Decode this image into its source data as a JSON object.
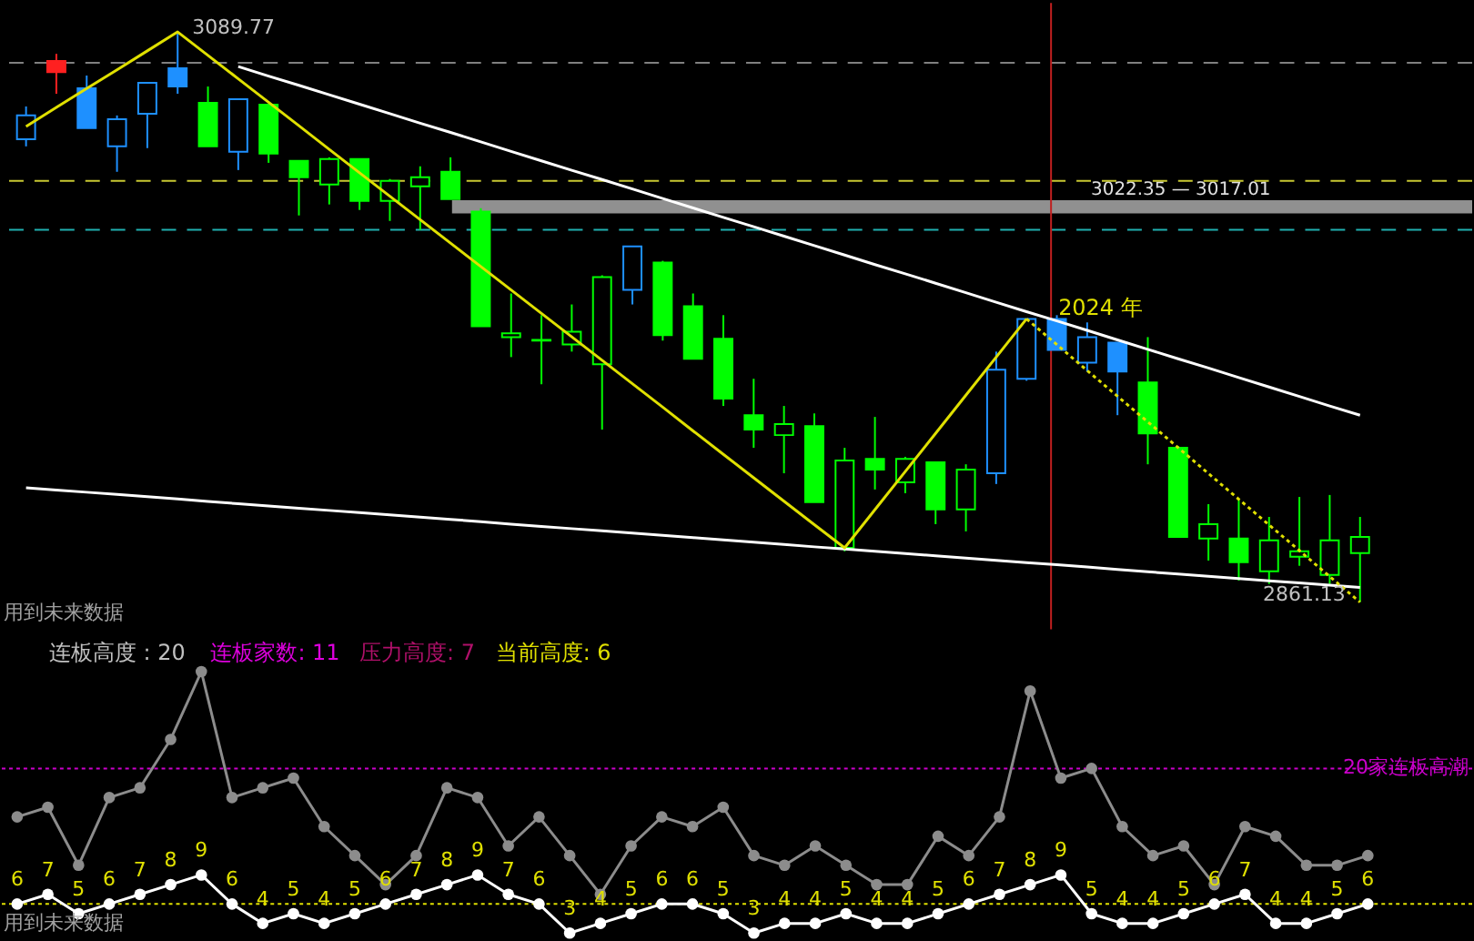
{
  "chart_data": [
    {
      "type": "candlestick",
      "categories": [
        null,
        null,
        null,
        null,
        null,
        null,
        null,
        null,
        null,
        null,
        null,
        null,
        null,
        null,
        null,
        null,
        null,
        null,
        null,
        null,
        null,
        null,
        null,
        null,
        null,
        null,
        null,
        null,
        null,
        null,
        null,
        null,
        null,
        null,
        null,
        null,
        null,
        null,
        null,
        null,
        null,
        null,
        null,
        null,
        null
      ],
      "ohlc": [
        [
          3046.8,
          3059.9,
          3043.9,
          3056.3
        ],
        [
          3078.1,
          3081.0,
          3065.0,
          3073.7
        ],
        [
          3067.2,
          3072.3,
          3051.2,
          3051.2
        ],
        [
          3043.9,
          3056.3,
          3033.7,
          3054.8
        ],
        [
          3057.0,
          3069.4,
          3043.2,
          3069.4
        ],
        [
          3075.2,
          3089.77,
          3065.0,
          3067.9
        ],
        [
          3061.4,
          3067.9,
          3043.9,
          3043.9
        ],
        [
          3041.7,
          3062.8,
          3034.4,
          3062.8
        ],
        [
          3060.6,
          3060.6,
          3037.3,
          3041.0
        ],
        [
          3038.1,
          3038.1,
          3016.2,
          3031.5
        ],
        [
          3028.6,
          3039.5,
          3020.6,
          3038.8
        ],
        [
          3038.8,
          3038.8,
          3018.4,
          3022.0
        ],
        [
          3022.0,
          3030.8,
          3014.0,
          3030.1
        ],
        [
          3027.9,
          3035.9,
          3010.4,
          3031.5
        ],
        [
          3033.7,
          3039.5,
          3022.8,
          3022.8
        ],
        [
          3017.7,
          3019.1,
          2971.8,
          2971.8
        ],
        [
          2967.4,
          2984.9,
          2959.4,
          2968.9
        ],
        [
          2966.0,
          2976.2,
          2948.5,
          2966.3
        ],
        [
          2964.5,
          2980.5,
          2961.6,
          2969.6
        ],
        [
          2956.5,
          2992.2,
          2930.3,
          2991.5
        ],
        [
          2986.4,
          3003.8,
          2980.5,
          3003.8
        ],
        [
          2997.3,
          2998.0,
          2966.0,
          2968.2
        ],
        [
          2979.8,
          2984.9,
          2958.7,
          2958.7
        ],
        [
          2966.7,
          2976.2,
          2939.8,
          2942.7
        ],
        [
          2936.1,
          2950.7,
          2923.0,
          2930.3
        ],
        [
          2928.1,
          2939.8,
          2912.8,
          2932.5
        ],
        [
          2931.7,
          2936.8,
          2901.2,
          2901.2
        ],
        [
          2882.9,
          2923.0,
          2881.5,
          2917.9
        ],
        [
          2918.6,
          2935.4,
          2906.3,
          2914.3
        ],
        [
          2909.2,
          2919.4,
          2904.8,
          2918.6
        ],
        [
          2917.2,
          2917.2,
          2892.4,
          2898.3
        ],
        [
          2898.3,
          2916.4,
          2889.5,
          2914.3
        ],
        [
          2912.8,
          2961.6,
          2908.5,
          2954.3
        ],
        [
          2950.7,
          2974.7,
          2949.9,
          2974.7
        ],
        [
          2974.7,
          2976.2,
          2962.3,
          2962.3
        ],
        [
          2957.2,
          2973.3,
          2953.6,
          2967.4
        ],
        [
          2965.2,
          2965.2,
          2936.1,
          2953.6
        ],
        [
          2949.2,
          2967.4,
          2916.4,
          2928.8
        ],
        [
          2923.0,
          2923.7,
          2887.3,
          2887.3
        ],
        [
          2886.6,
          2900.4,
          2877.8,
          2892.4
        ],
        [
          2886.6,
          2902.6,
          2869.8,
          2877.1
        ],
        [
          2873.5,
          2895.3,
          2868.4,
          2885.9
        ],
        [
          2879.3,
          2903.3,
          2875.7,
          2881.5
        ],
        [
          2872.0,
          2904.1,
          2868.4,
          2885.9
        ],
        [
          2880.8,
          2895.3,
          2861.13,
          2887.3
        ]
      ],
      "colors": [
        "#1e90ff",
        "#ff2020",
        "#1e90ff",
        "#1e90ff",
        "#1e90ff",
        "#1e90ff",
        "#00ff00",
        "#1e90ff",
        "#00ff00",
        "#00ff00",
        "#00ff00",
        "#00ff00",
        "#00ff00",
        "#00ff00",
        "#00ff00",
        "#00ff00",
        "#00ff00",
        "#00ff00",
        "#00ff00",
        "#00ff00",
        "#1e90ff",
        "#00ff00",
        "#00ff00",
        "#00ff00",
        "#00ff00",
        "#00ff00",
        "#00ff00",
        "#00ff00",
        "#00ff00",
        "#00ff00",
        "#00ff00",
        "#00ff00",
        "#1e90ff",
        "#1e90ff",
        "#1e90ff",
        "#1e90ff",
        "#1e90ff",
        "#00ff00",
        "#00ff00",
        "#00ff00",
        "#00ff00",
        "#00ff00",
        "#00ff00",
        "#00ff00",
        "#00ff00"
      ],
      "series": [
        {
          "type": "line",
          "color": "#ffffff",
          "values": [
            null,
            null,
            null,
            null,
            null,
            null,
            null,
            3075.9,
            3072.1,
            3068.4,
            3064.6,
            3060.8,
            3057.0,
            3053.2,
            3049.5,
            3045.7,
            3041.9,
            3038.1,
            3034.3,
            3030.6,
            3026.8,
            3023.0,
            3019.2,
            3015.4,
            3011.7,
            3007.9,
            3004.1,
            3000.3,
            2996.5,
            2992.8,
            2989.0,
            2985.2,
            2981.4,
            2977.6,
            2973.9,
            2970.1,
            2966.3,
            2962.5,
            2958.7,
            2955.0,
            2951.2,
            2947.4,
            2943.6,
            2939.8,
            2936.1
          ]
        },
        {
          "type": "line",
          "color": "#ffffff",
          "values": [
            2907.0,
            2906.1,
            2905.2,
            2904.3,
            2903.4,
            2902.5,
            2901.5,
            2900.6,
            2899.7,
            2898.8,
            2897.9,
            2897.0,
            2896.1,
            2895.2,
            2894.3,
            2893.4,
            2892.4,
            2891.5,
            2890.6,
            2889.7,
            2888.8,
            2887.9,
            2887.0,
            2886.1,
            2885.2,
            2884.3,
            2883.3,
            2882.4,
            2881.5,
            2880.6,
            2879.7,
            2878.8,
            2877.9,
            2877.0,
            2876.1,
            2875.2,
            2874.2,
            2873.3,
            2872.4,
            2871.5,
            2870.6,
            2869.7,
            2868.8,
            2867.9,
            2867.0
          ]
        },
        {
          "type": "line",
          "color": "#e0e000",
          "line_style": "solid",
          "values": [
            3051.9,
            3059.5,
            3067.1,
            3074.6,
            3082.2,
            3089.8,
            3080.4,
            3071.0,
            3061.6,
            3052.2,
            3042.7,
            3033.3,
            3023.9,
            3014.5,
            3005.1,
            2995.7,
            2986.3,
            2976.9,
            2967.5,
            2958.1,
            2948.7,
            2939.3,
            2929.8,
            2920.4,
            2911.0,
            2901.6,
            2892.2,
            2882.9,
            2898.2,
            2913.5,
            2928.8,
            2944.1,
            2959.4,
            2974.7,
            null,
            null,
            null,
            null,
            null,
            null,
            null,
            null,
            null,
            null,
            null
          ]
        },
        {
          "type": "line",
          "color": "#e0e000",
          "line_style": "dotted",
          "values": [
            null,
            null,
            null,
            null,
            null,
            null,
            null,
            null,
            null,
            null,
            null,
            null,
            null,
            null,
            null,
            null,
            null,
            null,
            null,
            null,
            null,
            null,
            null,
            null,
            null,
            null,
            null,
            null,
            null,
            null,
            null,
            null,
            null,
            2974.7,
            2964.4,
            2954.0,
            2943.7,
            2933.4,
            2923.1,
            2912.7,
            2902.4,
            2892.1,
            2881.8,
            2871.4,
            2861.1
          ]
        }
      ],
      "ref_lines": [
        {
          "axis": "y",
          "value": 3077.4,
          "color": "#808080",
          "line_style": "dashed"
        },
        {
          "axis": "y",
          "value": 3030.1,
          "color": "#c8c832",
          "line_style": "dashed"
        },
        {
          "axis": "y",
          "value": 3010.4,
          "color": "#20b0b0",
          "line_style": "dashed"
        }
      ],
      "bands": [
        {
          "axis": "y",
          "from": 3017.01,
          "to": 3022.35,
          "label": "3022.35 — 3017.01",
          "color": "#909090"
        }
      ],
      "annotations": [
        "3089.77",
        "2861.13",
        "2024 年",
        "用到未来数据"
      ],
      "ylim": [
        2850.2,
        3101.4
      ],
      "tick_labels": false,
      "grid": false
    },
    {
      "type": "line",
      "categories": [
        null,
        null,
        null,
        null,
        null,
        null,
        null,
        null,
        null,
        null,
        null,
        null,
        null,
        null,
        null,
        null,
        null,
        null,
        null,
        null,
        null,
        null,
        null,
        null,
        null,
        null,
        null,
        null,
        null,
        null,
        null,
        null,
        null,
        null,
        null,
        null,
        null,
        null,
        null,
        null,
        null,
        null,
        null,
        null,
        null
      ],
      "series": [
        {
          "color": "#8c8c8c",
          "marker": "circle",
          "values": [
            15,
            16,
            10,
            17,
            18,
            23,
            30,
            17,
            18,
            19,
            14,
            11,
            8,
            11,
            18,
            17,
            12,
            15,
            11,
            7,
            12,
            15,
            14,
            16,
            11,
            10,
            12,
            10,
            8,
            8,
            13,
            11,
            15,
            28,
            19,
            20,
            14,
            11,
            12,
            8,
            14,
            13,
            10,
            10,
            11
          ]
        },
        {
          "color": "#ffffff",
          "marker": "circle",
          "values": [
            6,
            7,
            5,
            6,
            7,
            8,
            9,
            6,
            4,
            5,
            4,
            5,
            6,
            7,
            8,
            9,
            7,
            6,
            3,
            4,
            5,
            6,
            6,
            5,
            3,
            4,
            4,
            5,
            4,
            4,
            5,
            6,
            7,
            8,
            9,
            5,
            4,
            4,
            5,
            6,
            7,
            4,
            4,
            5,
            6
          ],
          "value_labels": [
            "6",
            "7",
            "5",
            "6",
            "7",
            "8",
            "9",
            "6",
            "4",
            "5",
            "4",
            "5",
            "6",
            "7",
            "8",
            "9",
            "7",
            "6",
            "3",
            "4",
            "5",
            "6",
            "6",
            "5",
            "3",
            "4",
            "4",
            "5",
            "4",
            "4",
            "5",
            "6",
            "7",
            "8",
            "9",
            "5",
            "4",
            "4",
            "5",
            "6",
            "7",
            "4",
            "4",
            "5",
            "6"
          ]
        }
      ],
      "ref_lines": [
        {
          "axis": "y",
          "value": 20,
          "label": "20家连板高潮",
          "color": "#cc00cc",
          "line_style": "dotted"
        },
        {
          "axis": "y",
          "value": 6,
          "color": "#e0e000",
          "line_style": "dotted"
        }
      ],
      "annotations": [
        "连板高度 : 20",
        "连板家数: 11",
        "压力高度: 7",
        "当前高度: 6",
        "用到未来数据"
      ],
      "ylim": [
        2.3,
        33.8
      ],
      "tick_labels": false,
      "grid": false
    }
  ]
}
